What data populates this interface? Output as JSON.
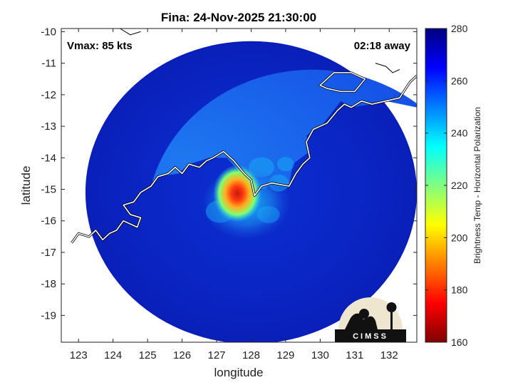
{
  "chart_data": {
    "type": "heatmap",
    "title": "Fina: 24-Nov-2025 21:30:00",
    "xlabel": "longitude",
    "ylabel": "latitude",
    "xlim": [
      122.5,
      132.8
    ],
    "ylim": [
      -19.85,
      -9.9
    ],
    "x_ticks": [
      123,
      124,
      125,
      126,
      127,
      128,
      129,
      130,
      131,
      132
    ],
    "y_ticks": [
      -10,
      -11,
      -12,
      -13,
      -14,
      -15,
      -16,
      -17,
      -18,
      -19
    ],
    "colorbar": {
      "label": "Brightness Temp - Horizontal Polarization",
      "range": [
        160,
        280
      ],
      "ticks": [
        160,
        180,
        200,
        220,
        240,
        260,
        280
      ],
      "colormap": "jet"
    },
    "annotations": {
      "vmax": "Vmax: 85 kts",
      "time_offset": "02:18 away"
    },
    "swath": {
      "center_lon": 128.0,
      "center_lat": -15.1,
      "radius_deg": 4.8
    },
    "storm_core": {
      "lon": 127.6,
      "lat": -14.95,
      "min_temp": 185
    },
    "background_temp": 270,
    "grid": false,
    "coastline_color": "#ffffff"
  },
  "logo": {
    "text": "CIMSS"
  }
}
